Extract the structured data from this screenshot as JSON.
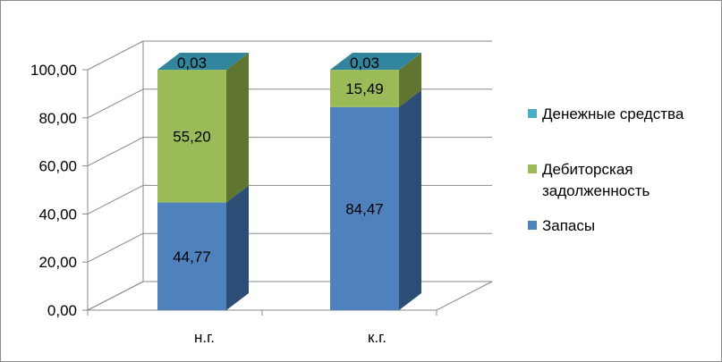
{
  "chart_data": {
    "type": "bar",
    "stacked": true,
    "three_d": true,
    "categories": [
      "н.г.",
      "к.г."
    ],
    "series": [
      {
        "name": "Запасы",
        "values": [
          44.77,
          84.47
        ],
        "labels": [
          "44,77",
          "84,47"
        ]
      },
      {
        "name": "Дебиторская задолженность",
        "values": [
          55.2,
          15.49
        ],
        "labels": [
          "55,20",
          "15,49"
        ]
      },
      {
        "name": "Денежные средства",
        "values": [
          0.03,
          0.03
        ],
        "labels": [
          "0,03",
          "0,03"
        ]
      }
    ],
    "ylim": [
      0,
      100
    ],
    "yticks": [
      0,
      20,
      40,
      60,
      80,
      100
    ],
    "ytick_labels": [
      "0,00",
      "20,00",
      "40,00",
      "60,00",
      "80,00",
      "100,00"
    ],
    "grid": true,
    "legend_position": "right",
    "legend_order": [
      "Денежные средства",
      "Дебиторская задолженность",
      "Запасы"
    ],
    "legend_lines": [
      [
        "Денежные средства"
      ],
      [
        "Дебиторская",
        "задолженность"
      ],
      [
        "Запасы"
      ]
    ],
    "colors": {
      "Запасы": {
        "front": "#4f81bd",
        "side": "#2c4d75",
        "top": "#6d97cc"
      },
      "Дебиторская задолженность": {
        "front": "#9bbb59",
        "side": "#5f7530",
        "top": "#b3cc7a"
      },
      "Денежные средства": {
        "front": "#4bacc6",
        "side": "#2d7385",
        "top": "#31859c"
      }
    }
  }
}
